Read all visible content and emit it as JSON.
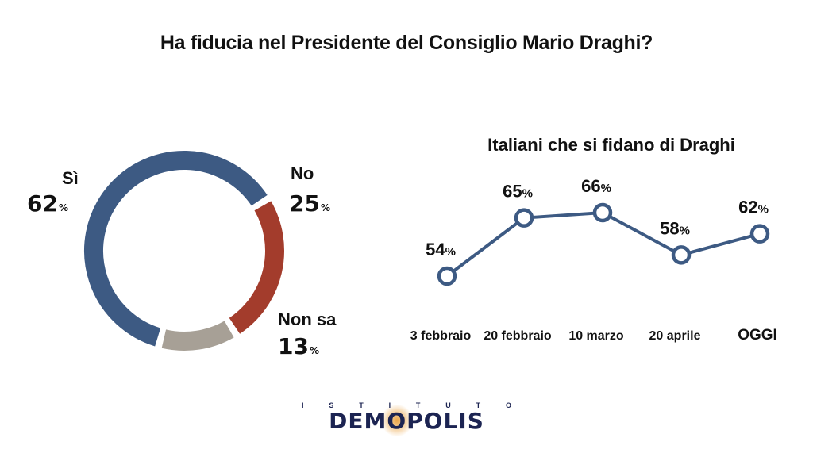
{
  "title": "Ha fiducia nel Presidente del Consiglio Mario Draghi?",
  "chart_data": [
    {
      "type": "pie",
      "variant": "donut",
      "slices": [
        {
          "label": "Sì",
          "value": 62,
          "display": "62",
          "color": "#3d5a83"
        },
        {
          "label": "No",
          "value": 25,
          "display": "25",
          "color": "#a33c2c"
        },
        {
          "label": "Non sa",
          "value": 13,
          "display": "13",
          "color": "#a7a096"
        }
      ],
      "unit": "%"
    },
    {
      "type": "line",
      "title": "Italiani che si fidano di Draghi",
      "categories": [
        "3 febbraio",
        "20 febbraio",
        "10 marzo",
        "20 aprile",
        "OGGI"
      ],
      "series": [
        {
          "values": [
            54,
            65,
            66,
            58,
            62
          ],
          "labels": [
            "54",
            "65",
            "66",
            "58",
            "62"
          ],
          "color": "#3d5a83"
        }
      ],
      "unit": "%"
    }
  ],
  "logo": {
    "top_text": [
      "I",
      "S",
      "T",
      "I",
      "T",
      "U",
      "T",
      "O"
    ],
    "main_text": "DEMOPOLIS"
  }
}
